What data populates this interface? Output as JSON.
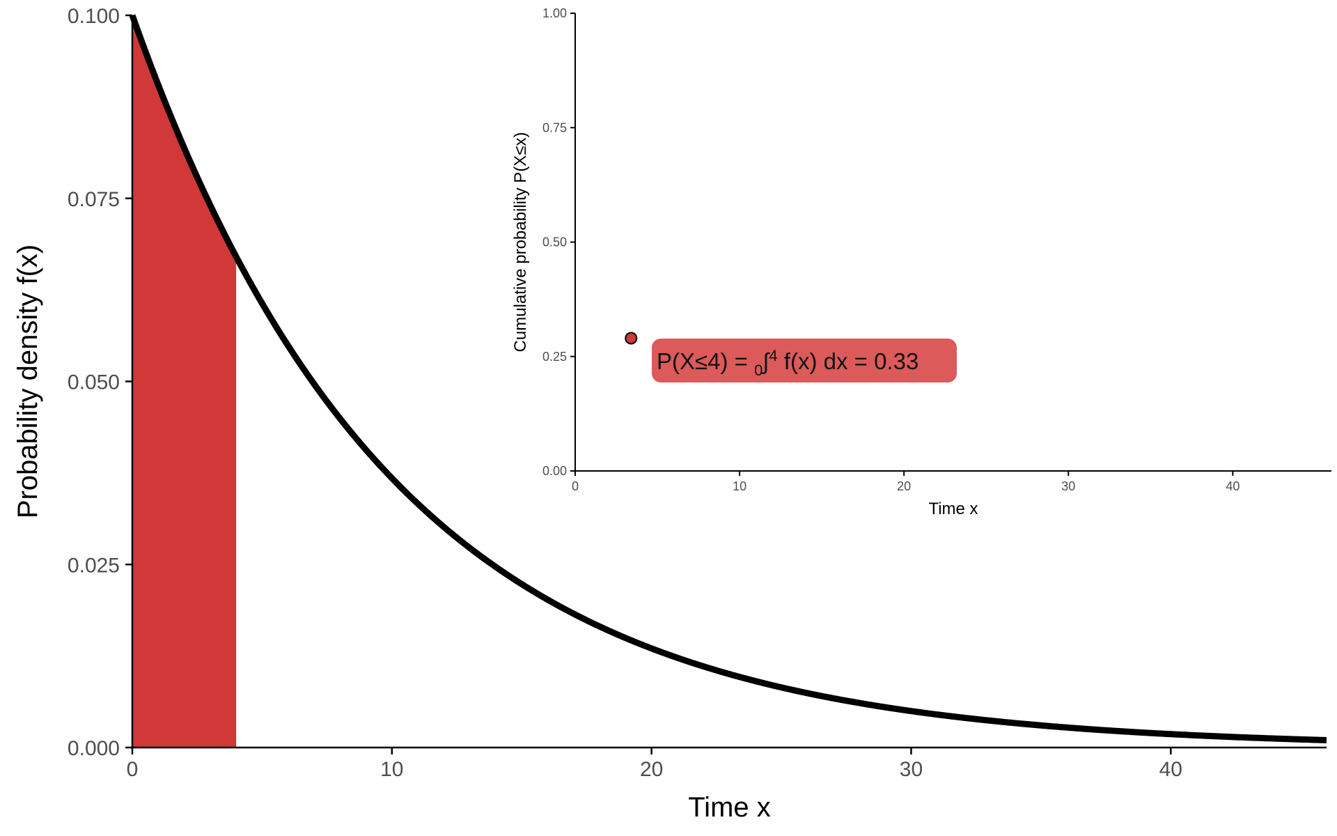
{
  "chart_data": [
    {
      "type": "area",
      "distribution": "exponential",
      "rate": 0.1,
      "x_range": [
        0,
        46
      ],
      "shaded_interval": [
        0,
        4
      ],
      "xlabel": "Time x",
      "ylabel": "Probability density f(x)",
      "xlim": [
        0,
        46
      ],
      "ylim": [
        0,
        0.1
      ],
      "x_ticks": [
        "0",
        "10",
        "20",
        "30",
        "40"
      ],
      "x_tick_values": [
        0,
        10,
        20,
        30,
        40
      ],
      "y_ticks": [
        "0.000",
        "0.025",
        "0.050",
        "0.075",
        "0.100"
      ],
      "y_tick_values": [
        0,
        0.025,
        0.05,
        0.075,
        0.1
      ],
      "grid": false
    },
    {
      "type": "scatter",
      "xlabel": "Time x",
      "ylabel": "Cumulative probability P(X≤x)",
      "xlim": [
        0,
        46
      ],
      "ylim": [
        0,
        1
      ],
      "x_ticks": [
        "0",
        "10",
        "20",
        "30",
        "40"
      ],
      "x_tick_values": [
        0,
        10,
        20,
        30,
        40
      ],
      "y_ticks": [
        "0.00",
        "0.25",
        "0.50",
        "0.75",
        "1.00"
      ],
      "y_tick_values": [
        0,
        0.25,
        0.5,
        0.75,
        1
      ],
      "points": [
        {
          "x": 3.4,
          "y": 0.29
        }
      ],
      "annotation": {
        "prefix": "P(X≤4) = ",
        "lower": "0",
        "symbol": "∫",
        "upper": "4",
        "suffix": " f(x) dx = 0.33"
      },
      "grid": false
    }
  ],
  "colors": {
    "area_fill": "#d13838",
    "curve": "#000000",
    "point_fill": "#d13838",
    "annotation_fill": "#dc5a5a",
    "axis": "#000000",
    "tick_text": "#4d4d4d"
  }
}
